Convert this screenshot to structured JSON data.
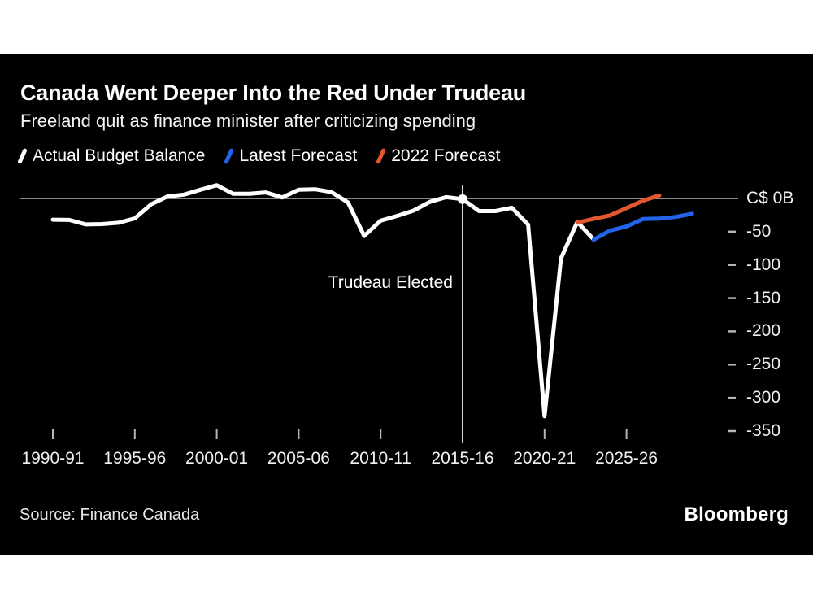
{
  "footer": {
    "source": "Source: Finance Canada",
    "brand": "Bloomberg"
  },
  "colors": {
    "page_background": "#ffffff",
    "card_background": "#000000",
    "text": "#ffffff",
    "grid": "#b5b5b5",
    "annotation_line": "#d6d6d6",
    "actual": "#ffffff",
    "latest_forecast": "#2263eb",
    "forecast_2022": "#e4572e"
  },
  "chart_data": {
    "type": "line",
    "title": "Canada Went Deeper Into the Red Under Trudeau",
    "subtitle": "Freeland quit as finance minister after criticizing spending",
    "ylabel": "C$ billions",
    "ylim": [
      -350,
      25
    ],
    "xlim": [
      1990,
      2029
    ],
    "grid": "zero-line-only",
    "legend_position": "top",
    "x_ticks": [
      {
        "year": 1990,
        "label": "1990-91"
      },
      {
        "year": 1995,
        "label": "1995-96"
      },
      {
        "year": 2000,
        "label": "2000-01"
      },
      {
        "year": 2005,
        "label": "2005-06"
      },
      {
        "year": 2010,
        "label": "2010-11"
      },
      {
        "year": 2015,
        "label": "2015-16"
      },
      {
        "year": 2020,
        "label": "2020-21"
      },
      {
        "year": 2025,
        "label": "2025-26"
      }
    ],
    "y_ticks": [
      {
        "value": 0,
        "label": "C$ 0B"
      },
      {
        "value": -50,
        "label": "-50"
      },
      {
        "value": -100,
        "label": "-100"
      },
      {
        "value": -150,
        "label": "-150"
      },
      {
        "value": -200,
        "label": "-200"
      },
      {
        "value": -250,
        "label": "-250"
      },
      {
        "value": -300,
        "label": "-300"
      },
      {
        "value": -350,
        "label": "-350"
      }
    ],
    "series": [
      {
        "name": "Actual Budget Balance",
        "color": "#ffffff",
        "points": [
          [
            1990,
            -32.0
          ],
          [
            1991,
            -32.3
          ],
          [
            1992,
            -39.0
          ],
          [
            1993,
            -38.5
          ],
          [
            1994,
            -36.6
          ],
          [
            1995,
            -30.0
          ],
          [
            1996,
            -8.7
          ],
          [
            1997,
            3.0
          ],
          [
            1998,
            5.8
          ],
          [
            1999,
            13.1
          ],
          [
            2000,
            19.9
          ],
          [
            2001,
            7.0
          ],
          [
            2002,
            7.0
          ],
          [
            2003,
            9.1
          ],
          [
            2004,
            1.5
          ],
          [
            2005,
            13.2
          ],
          [
            2006,
            13.8
          ],
          [
            2007,
            9.6
          ],
          [
            2008,
            -5.8
          ],
          [
            2009,
            -56.4
          ],
          [
            2010,
            -33.4
          ],
          [
            2011,
            -26.3
          ],
          [
            2012,
            -18.4
          ],
          [
            2013,
            -5.2
          ],
          [
            2014,
            1.9
          ],
          [
            2015,
            -1.0
          ],
          [
            2016,
            -19.0
          ],
          [
            2017,
            -19.0
          ],
          [
            2018,
            -14.0
          ],
          [
            2019,
            -39.4
          ],
          [
            2020,
            -327.7
          ],
          [
            2021,
            -90.2
          ],
          [
            2022,
            -35.3
          ],
          [
            2023,
            -61.9
          ]
        ]
      },
      {
        "name": "Latest Forecast",
        "color": "#2263eb",
        "points": [
          [
            2023,
            -61.9
          ],
          [
            2024,
            -48.3
          ],
          [
            2025,
            -42.2
          ],
          [
            2026,
            -31.0
          ],
          [
            2027,
            -30.4
          ],
          [
            2028,
            -27.8
          ],
          [
            2029,
            -23.0
          ]
        ]
      },
      {
        "name": "2022 Forecast",
        "color": "#e4572e",
        "points": [
          [
            2022,
            -36.4
          ],
          [
            2023,
            -30.6
          ],
          [
            2024,
            -25.4
          ],
          [
            2025,
            -14.5
          ],
          [
            2026,
            -3.4
          ],
          [
            2027,
            4.5
          ]
        ]
      }
    ],
    "annotation": {
      "text": "Trudeau Elected",
      "year": 2015,
      "value": -1.0
    }
  }
}
